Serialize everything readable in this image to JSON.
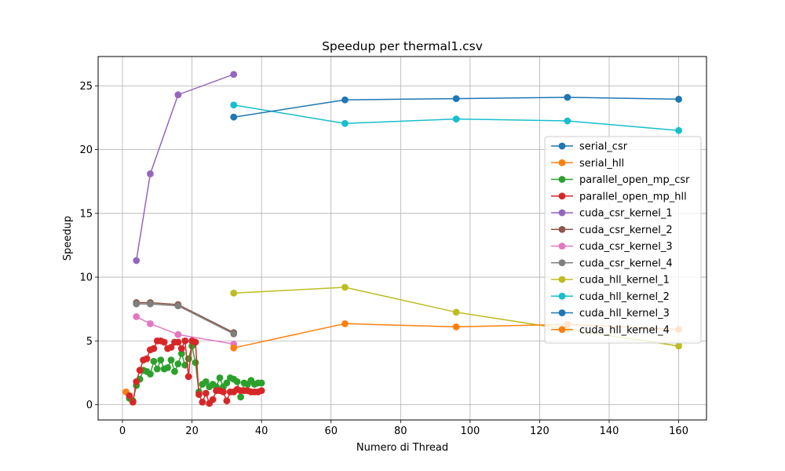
{
  "chart_data": {
    "type": "line",
    "title": "Speedup per thermal1.csv",
    "xlabel": "Numero di Thread",
    "ylabel": "Speedup",
    "xlim": [
      -7,
      168
    ],
    "ylim": [
      -1.2,
      27.3
    ],
    "xticks": [
      0,
      20,
      40,
      60,
      80,
      100,
      120,
      140,
      160
    ],
    "yticks": [
      0,
      5,
      10,
      15,
      20,
      25
    ],
    "grid": true,
    "legend_position": "right",
    "series": [
      {
        "name": "serial_csr",
        "color": "#1f77b4",
        "x": [],
        "y": []
      },
      {
        "name": "serial_hll",
        "color": "#ff7f0e",
        "x": [
          1
        ],
        "y": [
          1.0
        ]
      },
      {
        "name": "parallel_open_mp_csr",
        "color": "#2ca02c",
        "x": [
          2,
          3,
          4,
          5,
          6,
          7,
          8,
          9,
          10,
          11,
          12,
          13,
          14,
          15,
          16,
          17,
          18,
          19,
          20,
          21,
          22,
          23,
          24,
          25,
          26,
          27,
          28,
          29,
          30,
          31,
          32,
          33,
          34,
          35,
          36,
          37,
          38,
          39,
          40
        ],
        "y": [
          0.5,
          0.3,
          1.5,
          2.0,
          2.7,
          2.6,
          2.4,
          3.4,
          2.8,
          3.5,
          2.8,
          2.9,
          3.5,
          2.6,
          3.2,
          4.0,
          3.1,
          3.6,
          4.6,
          3.3,
          1.0,
          1.6,
          1.8,
          1.4,
          1.6,
          1.4,
          2.1,
          1.4,
          1.7,
          2.1,
          2.0,
          1.8,
          0.6,
          1.7,
          1.6,
          1.9,
          1.6,
          1.7,
          1.7
        ]
      },
      {
        "name": "parallel_open_mp_hll",
        "color": "#d62728",
        "x": [
          2,
          3,
          4,
          5,
          6,
          7,
          8,
          9,
          10,
          11,
          12,
          13,
          14,
          15,
          16,
          17,
          18,
          19,
          20,
          21,
          22,
          23,
          24,
          25,
          26,
          27,
          28,
          29,
          30,
          31,
          32,
          33,
          34,
          35,
          36,
          37,
          38,
          39,
          40
        ],
        "y": [
          0.7,
          0.2,
          1.8,
          2.7,
          3.5,
          3.6,
          4.3,
          4.4,
          5.0,
          5.0,
          4.9,
          4.4,
          4.5,
          4.9,
          4.9,
          4.4,
          5.0,
          2.2,
          5.0,
          4.9,
          0.8,
          0.2,
          0.9,
          0.1,
          0.4,
          1.1,
          1.1,
          1.0,
          0.3,
          1.0,
          1.0,
          1.2,
          1.1,
          1.1,
          1.1,
          1.0,
          1.0,
          1.0,
          1.1
        ]
      },
      {
        "name": "cuda_csr_kernel_1",
        "color": "#9467bd",
        "x": [
          4,
          8,
          16,
          32
        ],
        "y": [
          11.3,
          18.1,
          24.3,
          25.9
        ]
      },
      {
        "name": "cuda_csr_kernel_2",
        "color": "#8c564b",
        "x": [
          4,
          8,
          16,
          32
        ],
        "y": [
          8.0,
          8.0,
          7.85,
          5.65
        ]
      },
      {
        "name": "cuda_csr_kernel_3",
        "color": "#e377c2",
        "x": [
          4,
          8,
          16,
          32
        ],
        "y": [
          6.9,
          6.35,
          5.5,
          4.75
        ]
      },
      {
        "name": "cuda_csr_kernel_4",
        "color": "#7f7f7f",
        "x": [
          4,
          8,
          16,
          32
        ],
        "y": [
          7.9,
          7.9,
          7.75,
          5.55
        ]
      },
      {
        "name": "cuda_hll_kernel_1",
        "color": "#bcbd22",
        "x": [
          32,
          64,
          96,
          128,
          160
        ],
        "y": [
          8.75,
          9.2,
          7.25,
          5.9,
          4.6
        ]
      },
      {
        "name": "cuda_hll_kernel_2",
        "color": "#17becf",
        "x": [
          32,
          64,
          96,
          128,
          160
        ],
        "y": [
          23.5,
          22.05,
          22.4,
          22.25,
          21.5
        ]
      },
      {
        "name": "cuda_hll_kernel_3",
        "color": "#1f77b4",
        "x": [
          32,
          64,
          96,
          128,
          160
        ],
        "y": [
          22.55,
          23.9,
          24.0,
          24.1,
          23.95
        ]
      },
      {
        "name": "cuda_hll_kernel_4",
        "color": "#ff7f0e",
        "x": [
          32,
          64,
          96,
          128,
          160
        ],
        "y": [
          4.45,
          6.35,
          6.1,
          6.3,
          5.9
        ]
      }
    ]
  }
}
